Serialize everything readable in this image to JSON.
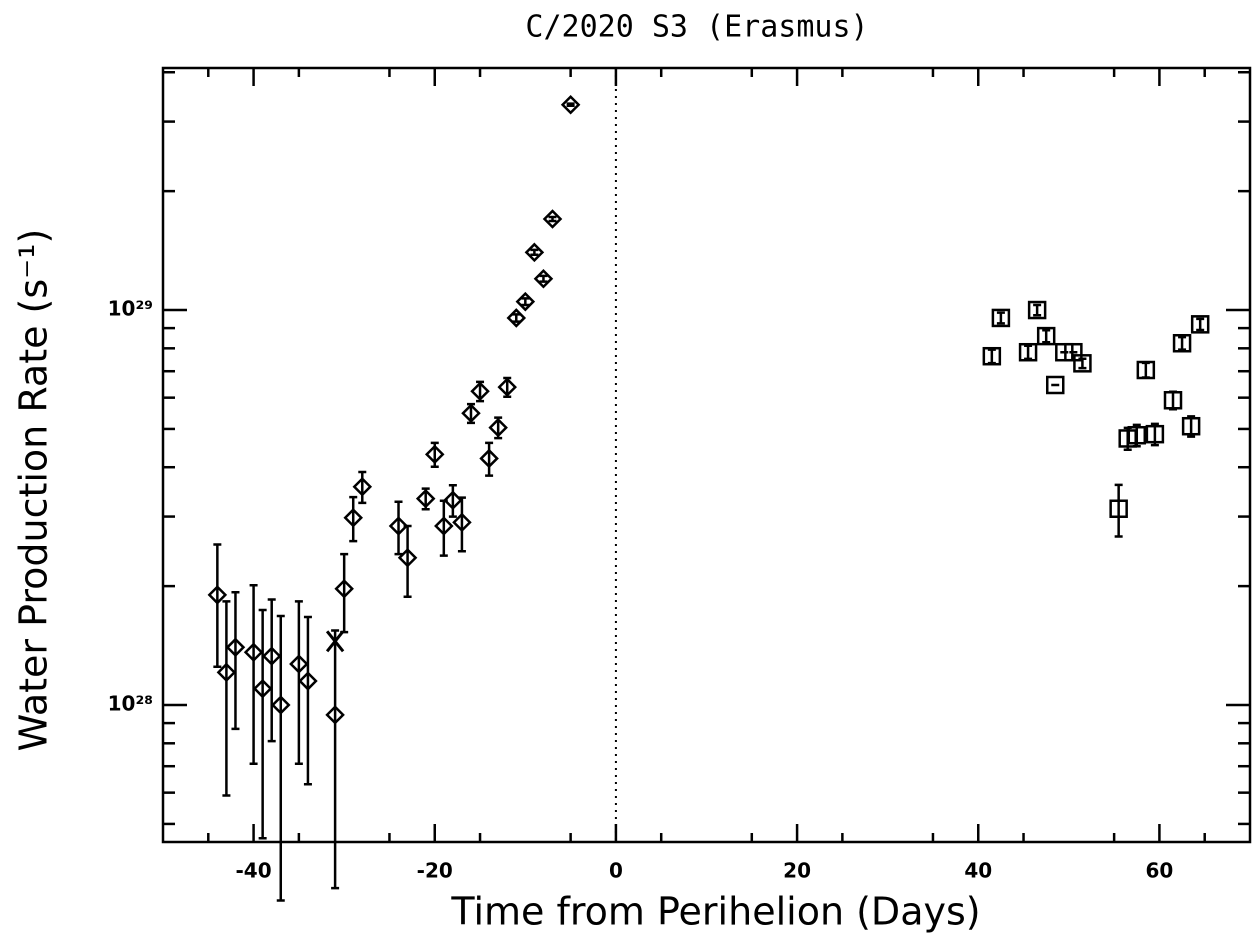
{
  "chart_data": {
    "type": "scatter",
    "title": "C/2020 S3 (Erasmus)",
    "xlabel": "Time from Perihelion (Days)",
    "ylabel": "Water Production Rate (s⁻¹)",
    "xlim": [
      -50,
      70
    ],
    "ylim": [
      4.5e+27,
      4.1e+29
    ],
    "yscale": "log",
    "xticks": [
      -40,
      -20,
      0,
      20,
      40,
      60
    ],
    "xminorticks": [
      -45,
      -35,
      -25,
      -15,
      -5,
      5,
      15,
      25,
      35,
      45,
      55,
      65
    ],
    "yticks": [
      {
        "value": 1e+28,
        "label": "10²⁸"
      },
      {
        "value": 1e+29,
        "label": "10²⁹"
      }
    ],
    "yminorticks": [
      5e+27,
      6e+27,
      7e+27,
      8e+27,
      9e+27,
      2e+28,
      3e+28,
      4e+28,
      5e+28,
      6e+28,
      7e+28,
      8e+28,
      9e+28,
      2e+29,
      3e+29,
      4e+29
    ],
    "reference_line_x": 0,
    "color": "#000000",
    "series": [
      {
        "marker": "diamond",
        "x": [
          -44,
          -43,
          -42,
          -40,
          -39,
          -38,
          -37,
          -35,
          -34,
          -31,
          -30,
          -29,
          -28,
          -24,
          -23,
          -21,
          -20,
          -19,
          -18,
          -17,
          -16,
          -15,
          -14,
          -13,
          -12,
          -11,
          -10,
          -9,
          -8,
          -7,
          -5
        ],
        "values": [
          1.9e+28,
          1.21e+28,
          1.4e+28,
          1.36e+28,
          1.1e+28,
          1.33e+28,
          1e+28,
          1.27e+28,
          1.15e+28,
          9.44e+27,
          1.97e+28,
          2.98e+28,
          3.57e+28,
          2.84e+28,
          2.36e+28,
          3.33e+28,
          4.31e+28,
          2.84e+28,
          3.3e+28,
          2.9e+28,
          5.48e+28,
          6.23e+28,
          4.21e+28,
          5.04e+28,
          6.38e+28,
          9.55e+28,
          1.05e+29,
          1.4e+29,
          1.2e+29,
          1.7e+29,
          3.31e+29
        ],
        "errors": [
          6.5e+27,
          6.2e+27,
          5.3e+27,
          6.5e+27,
          6.4e+27,
          5.2e+27,
          6.8e+27,
          5.6e+27,
          5.2e+27,
          6e+27,
          4.4e+27,
          3.8e+27,
          3.2e+27,
          4.3e+27,
          4.8e+27,
          2e+27,
          3e+27,
          4.5e+27,
          3e+27,
          4.5e+27,
          3e+27,
          3.5e+27,
          4e+27,
          3e+27,
          3.5e+27,
          2e+27,
          2e+27,
          2e+27,
          2e+27,
          2e+27,
          2e+27
        ]
      },
      {
        "marker": "square",
        "x": [
          41.5,
          42.5,
          45.5,
          46.5,
          47.5,
          48.5,
          49.5,
          50.5,
          51.5,
          55.5,
          56.5,
          57.5,
          58.5,
          59.5,
          61.5,
          62.5,
          63.5,
          64.5
        ],
        "values": [
          7.64e+28,
          9.55e+28,
          7.82e+28,
          1e+29,
          8.59e+28,
          6.46e+28,
          7.82e+28,
          7.82e+28,
          7.33e+28,
          3.14e+28,
          4.73e+28,
          4.82e+28,
          7.05e+28,
          4.85e+28,
          5.91e+28,
          8.24e+28,
          5.08e+28,
          9.2e+28
        ],
        "errors": [
          3e+27,
          3e+27,
          3e+27,
          3e+27,
          3e+27,
          0,
          0,
          0,
          2e+27,
          4.7e+27,
          3e+27,
          3e+27,
          3e+27,
          3e+27,
          3e+27,
          3e+27,
          3e+27,
          3e+27
        ]
      },
      {
        "marker": "x",
        "x": [
          -31
        ],
        "values": [
          1.45e+28
        ]
      }
    ]
  }
}
